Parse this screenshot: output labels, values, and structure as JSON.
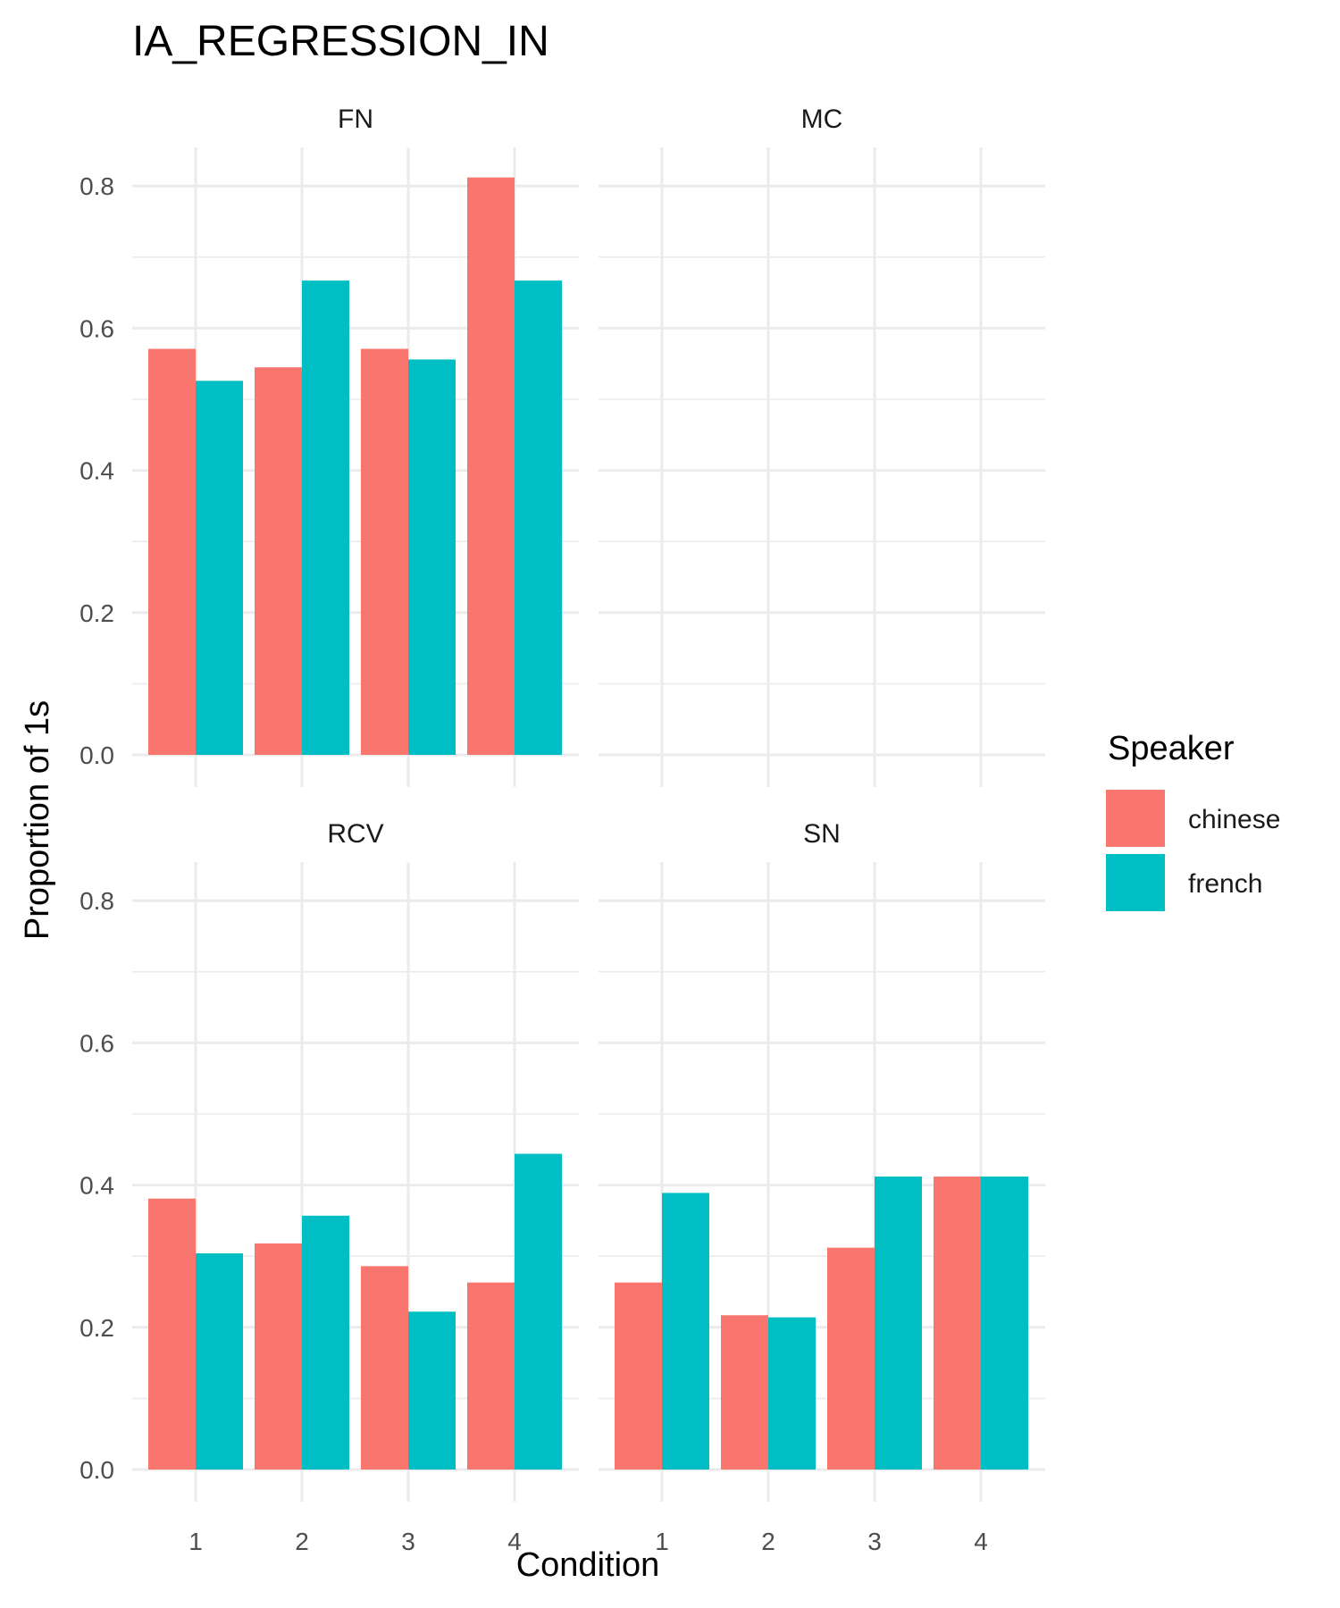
{
  "chart_data": {
    "type": "bar",
    "title": "IA_REGRESSION_IN",
    "xlabel": "Condition",
    "ylabel": "Proportion of 1s",
    "categories": [
      "1",
      "2",
      "3",
      "4"
    ],
    "ylim": [
      0,
      0.85
    ],
    "yticks": [
      "0.0",
      "0.2",
      "0.4",
      "0.6",
      "0.8"
    ],
    "grid": true,
    "legend": {
      "title": "Speaker",
      "position": "right",
      "entries": [
        {
          "name": "chinese",
          "color": "#F8766D"
        },
        {
          "name": "french",
          "color": "#00BFC4"
        }
      ]
    },
    "panels": [
      {
        "name": "FN",
        "series": [
          {
            "name": "chinese",
            "values": [
              0.571,
              0.545,
              0.571,
              0.812
            ]
          },
          {
            "name": "french",
            "values": [
              0.526,
              0.667,
              0.556,
              0.667
            ]
          }
        ]
      },
      {
        "name": "MC",
        "series": [
          {
            "name": "chinese",
            "values": [
              null,
              null,
              null,
              null
            ]
          },
          {
            "name": "french",
            "values": [
              null,
              null,
              null,
              null
            ]
          }
        ]
      },
      {
        "name": "RCV",
        "series": [
          {
            "name": "chinese",
            "values": [
              0.381,
              0.318,
              0.286,
              0.263
            ]
          },
          {
            "name": "french",
            "values": [
              0.304,
              0.357,
              0.222,
              0.444
            ]
          }
        ]
      },
      {
        "name": "SN",
        "series": [
          {
            "name": "chinese",
            "values": [
              0.263,
              0.217,
              0.312,
              0.412
            ]
          },
          {
            "name": "french",
            "values": [
              0.389,
              0.214,
              0.412,
              0.412
            ]
          }
        ]
      }
    ]
  }
}
